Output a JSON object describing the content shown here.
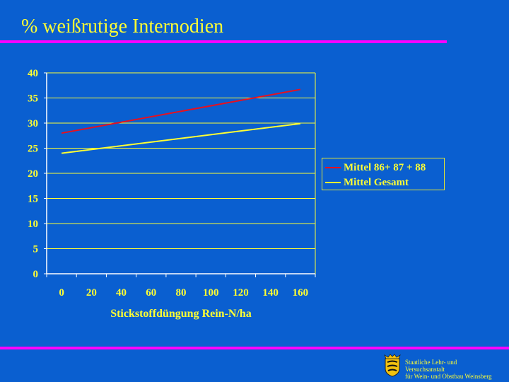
{
  "slide": {
    "title": "% weißrutige Internodien",
    "institution_lines": [
      "Staatliche Lehr- und",
      "Versuchsanstalt",
      "für Wein- und Obstbau Weinsberg"
    ]
  },
  "colors": {
    "background": "#0a5fd0",
    "accent_rule": "#ff00ff",
    "text": "#ffff33",
    "series_red": "#e8101e",
    "series_yellow": "#ffff33"
  },
  "icons": {
    "crest": "coat-of-arms-icon"
  },
  "chart_data": {
    "type": "line",
    "title": "",
    "xlabel": "Stickstoffdüngung Rein-N/ha",
    "ylabel": "",
    "xticks": [
      "0",
      "20",
      "40",
      "60",
      "80",
      "100",
      "120",
      "140",
      "160"
    ],
    "yticks": [
      "0",
      "5",
      "10",
      "15",
      "20",
      "25",
      "30",
      "35",
      "40"
    ],
    "xlim": [
      -10,
      170
    ],
    "ylim": [
      0,
      40
    ],
    "grid": "horizontal",
    "legend_position": "right",
    "series": [
      {
        "name": "Mittel 86+ 87 + 88",
        "color": "#e8101e",
        "x": [
          0,
          160
        ],
        "y": [
          28,
          36.7
        ]
      },
      {
        "name": "Mittel Gesamt",
        "color": "#ffff33",
        "x": [
          0,
          160
        ],
        "y": [
          24,
          29.9
        ]
      }
    ]
  }
}
